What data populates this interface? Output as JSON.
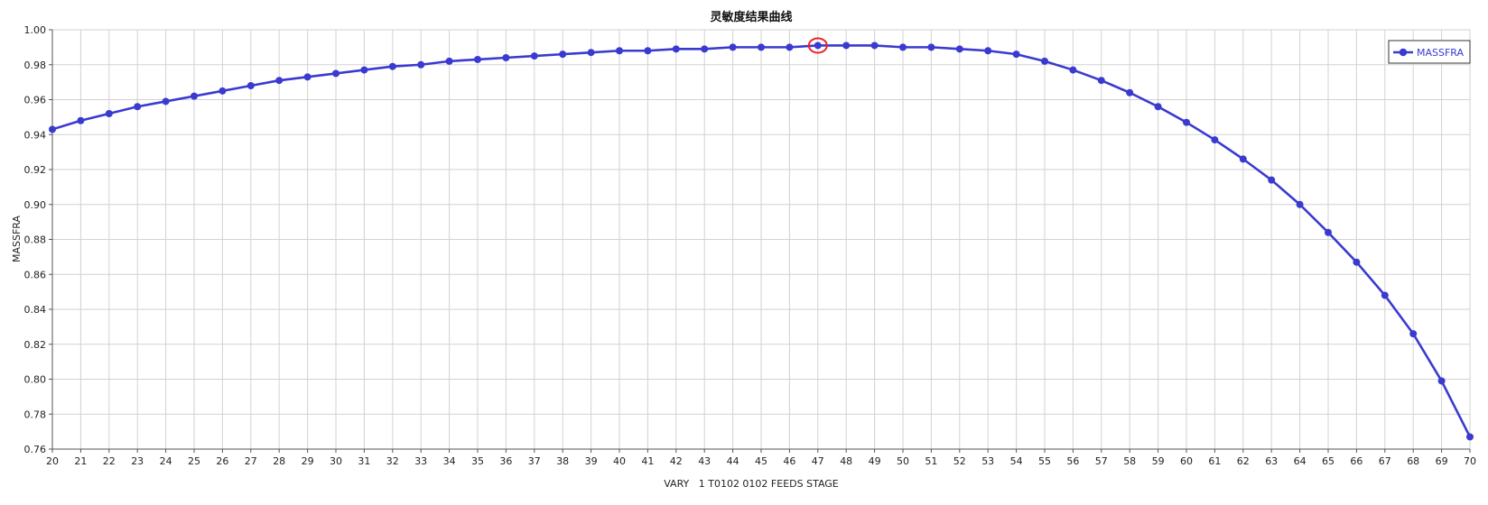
{
  "colors": {
    "series": "#3a3ad0",
    "grid": "#d2d2d2",
    "axis": "#555555",
    "highlight": "#ee2222"
  },
  "chart_data": {
    "type": "line",
    "title": "灵敏度结果曲线",
    "xlabel": "VARY   1 T0102 0102 FEEDS STAGE",
    "ylabel": "MASSFRA",
    "xlim": [
      20,
      70
    ],
    "ylim": [
      0.76,
      1.0
    ],
    "grid": true,
    "legend_position": "top-right",
    "x_ticks": [
      20,
      21,
      22,
      23,
      24,
      25,
      26,
      27,
      28,
      29,
      30,
      31,
      32,
      33,
      34,
      35,
      36,
      37,
      38,
      39,
      40,
      41,
      42,
      43,
      44,
      45,
      46,
      47,
      48,
      49,
      50,
      51,
      52,
      53,
      54,
      55,
      56,
      57,
      58,
      59,
      60,
      61,
      62,
      63,
      64,
      65,
      66,
      67,
      68,
      69,
      70
    ],
    "y_ticks": [
      0.76,
      0.78,
      0.8,
      0.82,
      0.84,
      0.86,
      0.88,
      0.9,
      0.92,
      0.94,
      0.96,
      0.98,
      1.0
    ],
    "y_tick_labels": [
      "0.76",
      "0.78",
      "0.80",
      "0.82",
      "0.84",
      "0.86",
      "0.88",
      "0.90",
      "0.92",
      "0.94",
      "0.96",
      "0.98",
      "1.00"
    ],
    "highlighted_x": 47,
    "series": [
      {
        "name": "MASSFRA",
        "x": [
          20,
          21,
          22,
          23,
          24,
          25,
          26,
          27,
          28,
          29,
          30,
          31,
          32,
          33,
          34,
          35,
          36,
          37,
          38,
          39,
          40,
          41,
          42,
          43,
          44,
          45,
          46,
          47,
          48,
          49,
          50,
          51,
          52,
          53,
          54,
          55,
          56,
          57,
          58,
          59,
          60,
          61,
          62,
          63,
          64,
          65,
          66,
          67,
          68,
          69,
          70
        ],
        "values": [
          0.943,
          0.948,
          0.952,
          0.956,
          0.959,
          0.962,
          0.965,
          0.968,
          0.971,
          0.973,
          0.975,
          0.977,
          0.979,
          0.98,
          0.982,
          0.983,
          0.984,
          0.985,
          0.986,
          0.987,
          0.988,
          0.988,
          0.989,
          0.989,
          0.99,
          0.99,
          0.99,
          0.991,
          0.991,
          0.991,
          0.99,
          0.99,
          0.989,
          0.988,
          0.986,
          0.982,
          0.977,
          0.971,
          0.964,
          0.956,
          0.947,
          0.937,
          0.926,
          0.914,
          0.9,
          0.884,
          0.867,
          0.848,
          0.826,
          0.799,
          0.767
        ]
      }
    ]
  }
}
